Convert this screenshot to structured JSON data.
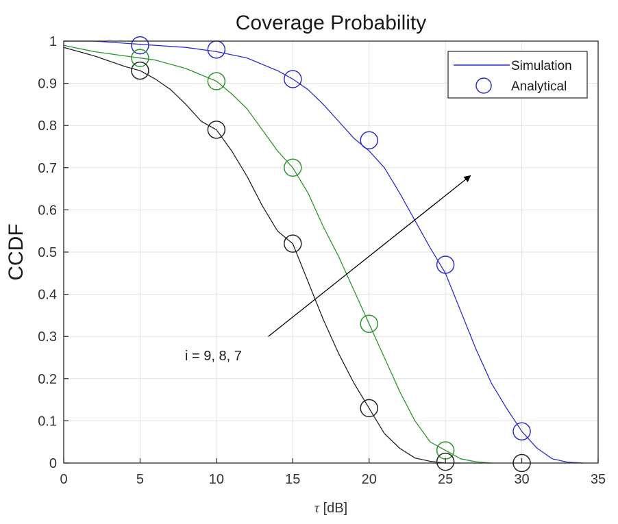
{
  "chart_data": {
    "type": "line",
    "title": "Coverage Probability",
    "xlabel_symbol": "τ",
    "xlabel_unit": "[dB]",
    "ylabel": "CCDF",
    "xlim": [
      0,
      35
    ],
    "ylim": [
      0,
      1
    ],
    "xticks": [
      "0",
      "5",
      "10",
      "15",
      "20",
      "25",
      "30",
      "35"
    ],
    "yticks": [
      "0",
      "0.1",
      "0.2",
      "0.3",
      "0.4",
      "0.5",
      "0.6",
      "0.7",
      "0.8",
      "0.9",
      "1"
    ],
    "grid": true,
    "legend": {
      "position": "top-right",
      "entries": [
        {
          "label": "Simulation",
          "marker": "line",
          "color": "#2b2bd4"
        },
        {
          "label": "Analytical",
          "marker": "circle",
          "color": "#2b2bd4"
        }
      ]
    },
    "annotation": {
      "text": "i = 9, 8, 7",
      "arrow_from": [
        13.4,
        0.3
      ],
      "arrow_to": [
        26.6,
        0.68
      ]
    },
    "series": [
      {
        "key": "i9",
        "color": "#2b2bd4",
        "simulation": {
          "x": [
            0,
            2,
            4,
            6,
            8,
            10,
            12,
            14,
            15,
            16,
            17,
            18,
            19,
            20,
            21,
            22,
            23,
            24,
            25,
            26,
            27,
            28,
            29,
            30,
            31,
            32,
            33,
            34
          ],
          "y": [
            1.0,
            1.0,
            0.995,
            0.99,
            0.985,
            0.975,
            0.96,
            0.93,
            0.91,
            0.885,
            0.85,
            0.81,
            0.77,
            0.74,
            0.7,
            0.64,
            0.575,
            0.51,
            0.45,
            0.36,
            0.27,
            0.19,
            0.13,
            0.075,
            0.035,
            0.01,
            0.002,
            0.0
          ]
        },
        "analytical": {
          "x": [
            5,
            10,
            15,
            20,
            25,
            30
          ],
          "y": [
            0.99,
            0.98,
            0.91,
            0.765,
            0.47,
            0.075
          ]
        }
      },
      {
        "key": "i8",
        "color": "#2a962a",
        "simulation": {
          "x": [
            0,
            2,
            4,
            6,
            8,
            10,
            11,
            12,
            13,
            14,
            15,
            16,
            17,
            18,
            19,
            20,
            21,
            22,
            23,
            24,
            25,
            26,
            27,
            28
          ],
          "y": [
            0.99,
            0.975,
            0.965,
            0.955,
            0.935,
            0.905,
            0.875,
            0.84,
            0.79,
            0.74,
            0.7,
            0.64,
            0.56,
            0.49,
            0.41,
            0.33,
            0.25,
            0.17,
            0.1,
            0.05,
            0.03,
            0.01,
            0.003,
            0.0
          ]
        },
        "analytical": {
          "x": [
            5,
            10,
            15,
            20,
            25
          ],
          "y": [
            0.96,
            0.905,
            0.7,
            0.33,
            0.03
          ]
        }
      },
      {
        "key": "i7",
        "color": "#222222",
        "simulation": {
          "x": [
            0,
            2,
            4,
            5,
            6,
            7,
            8,
            9,
            10,
            11,
            12,
            13,
            14,
            15,
            16,
            17,
            18,
            19,
            20,
            21,
            22,
            23,
            24,
            25,
            26
          ],
          "y": [
            0.985,
            0.965,
            0.94,
            0.93,
            0.91,
            0.885,
            0.85,
            0.81,
            0.79,
            0.74,
            0.68,
            0.61,
            0.55,
            0.52,
            0.43,
            0.34,
            0.26,
            0.19,
            0.13,
            0.07,
            0.035,
            0.012,
            0.004,
            0.0,
            0.0
          ]
        },
        "analytical": {
          "x": [
            5,
            10,
            15,
            20,
            25,
            30
          ],
          "y": [
            0.93,
            0.79,
            0.52,
            0.13,
            0.003,
            0.0
          ]
        }
      }
    ]
  }
}
